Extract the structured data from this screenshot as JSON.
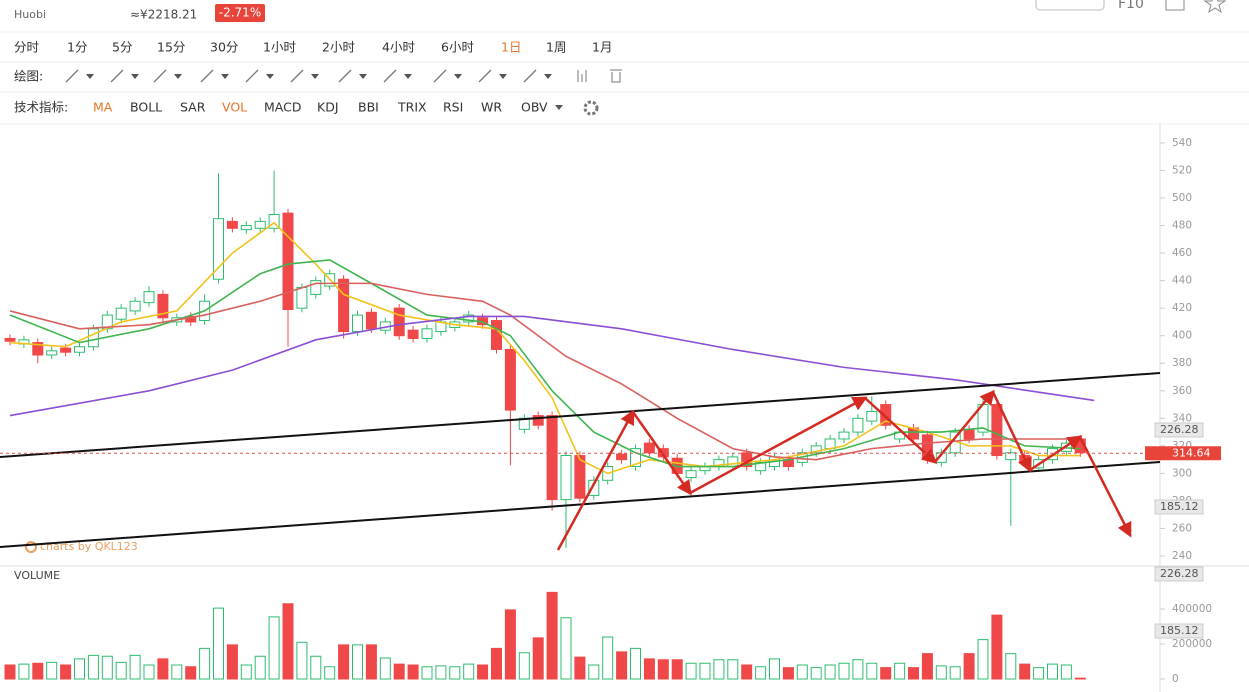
{
  "header": {
    "exchange": "Huobi",
    "price": "≈¥2218.21",
    "change": "-2.71%",
    "f10": "F10"
  },
  "toolbar": {
    "periods": [
      "分时",
      "1分",
      "5分",
      "15分",
      "30分",
      "1小时",
      "2小时",
      "4小时",
      "6小时",
      "1日",
      "1周",
      "1月"
    ],
    "drawing_label": "绘图:",
    "indicator_label": "技术指标:",
    "indicators": [
      "MA",
      "BOLL",
      "SAR",
      "VOL",
      "MACD",
      "KDJ",
      "BBI",
      "TRIX",
      "RSI",
      "WR",
      "OBV"
    ]
  },
  "chart_data": {
    "type": "candlestick",
    "categories": [
      null,
      null,
      null,
      null,
      null,
      null,
      null,
      null,
      null,
      null,
      null,
      null,
      null,
      null,
      null,
      null,
      null,
      null,
      null,
      null,
      null,
      null,
      null,
      null,
      null,
      null,
      null,
      null,
      null,
      null,
      null,
      null,
      null,
      null,
      null,
      null,
      null,
      null,
      null,
      null,
      null,
      null,
      null,
      null,
      null,
      null,
      null,
      null,
      null,
      null,
      null,
      null,
      null,
      null,
      null,
      null,
      null,
      null,
      null,
      null,
      null,
      null,
      null,
      null,
      null,
      null,
      null,
      null,
      null,
      null,
      null,
      null,
      null,
      null,
      null,
      null,
      null,
      null
    ],
    "open": [
      398,
      394,
      395,
      386,
      391,
      388,
      392,
      405,
      412,
      418,
      424,
      430,
      410,
      414,
      411,
      441,
      483,
      477,
      478,
      478,
      489,
      420,
      430,
      436,
      441,
      403,
      417,
      404,
      420,
      404,
      398,
      403,
      406,
      410,
      413,
      411,
      390,
      332,
      342,
      342,
      281,
      313,
      284,
      295,
      314,
      305,
      322,
      318,
      311,
      297,
      302,
      305,
      305,
      315,
      302,
      305,
      310,
      308,
      315,
      318,
      325,
      330,
      338,
      350,
      325,
      333,
      328,
      308,
      315,
      332,
      330,
      350,
      310,
      313,
      304,
      310,
      316,
      325
    ],
    "high": [
      401,
      400,
      398,
      392,
      394,
      395,
      408,
      418,
      423,
      428,
      436,
      433,
      416,
      417,
      430,
      518,
      486,
      483,
      486,
      520,
      492,
      438,
      443,
      448,
      444,
      418,
      420,
      413,
      423,
      407,
      408,
      413,
      413,
      418,
      416,
      414,
      393,
      343,
      345,
      345,
      316,
      316,
      298,
      308,
      317,
      321,
      325,
      321,
      314,
      305,
      308,
      313,
      315,
      318,
      311,
      315,
      313,
      318,
      323,
      328,
      333,
      343,
      356,
      353,
      333,
      336,
      331,
      318,
      333,
      335,
      355,
      353,
      318,
      316,
      313,
      321,
      325,
      328
    ],
    "low": [
      393,
      391,
      380,
      383,
      385,
      385,
      389,
      402,
      409,
      415,
      421,
      410,
      407,
      407,
      408,
      438,
      475,
      474,
      475,
      475,
      392,
      417,
      427,
      433,
      398,
      400,
      402,
      401,
      397,
      395,
      395,
      400,
      403,
      407,
      405,
      387,
      306,
      329,
      332,
      273,
      246,
      279,
      281,
      292,
      307,
      302,
      312,
      309,
      297,
      294,
      299,
      302,
      302,
      302,
      299,
      302,
      302,
      305,
      312,
      315,
      322,
      327,
      335,
      332,
      322,
      322,
      307,
      305,
      312,
      322,
      327,
      310,
      262,
      305,
      301,
      307,
      313,
      312
    ],
    "close": [
      396,
      397,
      386,
      389,
      388,
      392,
      405,
      415,
      420,
      425,
      432,
      413,
      413,
      410,
      425,
      485,
      478,
      480,
      483,
      488,
      419,
      435,
      440,
      445,
      403,
      415,
      405,
      410,
      400,
      398,
      405,
      410,
      410,
      415,
      408,
      390,
      346,
      340,
      335,
      281,
      313,
      282,
      295,
      305,
      310,
      318,
      315,
      312,
      300,
      302,
      305,
      310,
      312,
      305,
      308,
      312,
      305,
      315,
      320,
      325,
      330,
      340,
      345,
      335,
      330,
      325,
      310,
      315,
      330,
      325,
      350,
      313,
      315,
      308,
      310,
      318,
      322,
      315
    ],
    "volume": [
      80000,
      85000,
      90000,
      95000,
      80000,
      115000,
      135000,
      130000,
      95000,
      135000,
      80000,
      115000,
      80000,
      70000,
      175000,
      405000,
      195000,
      80000,
      130000,
      355000,
      430000,
      210000,
      130000,
      70000,
      195000,
      195000,
      195000,
      120000,
      85000,
      80000,
      70000,
      75000,
      70000,
      85000,
      80000,
      175000,
      395000,
      150000,
      235000,
      495000,
      350000,
      125000,
      80000,
      240000,
      155000,
      175000,
      115000,
      110000,
      110000,
      90000,
      90000,
      110000,
      110000,
      80000,
      70000,
      115000,
      65000,
      80000,
      65000,
      80000,
      90000,
      110000,
      90000,
      65000,
      90000,
      65000,
      145000,
      75000,
      70000,
      145000,
      225000,
      365000,
      145000,
      85000,
      65000,
      85000,
      80000,
      5000
    ],
    "up_color": "#2ebd6e",
    "down_color": "#f04848",
    "ma_lines": [
      {
        "color": "#f2c21b",
        "x": [
          0,
          4,
          8,
          12,
          16,
          19,
          22,
          24,
          28,
          32,
          35,
          37,
          39,
          41,
          43,
          46,
          50,
          55,
          60,
          63,
          66,
          69,
          72,
          74,
          77
        ],
        "values": [
          395,
          392,
          410,
          418,
          460,
          482,
          452,
          430,
          415,
          408,
          405,
          382,
          355,
          310,
          300,
          310,
          305,
          310,
          320,
          338,
          330,
          320,
          320,
          313,
          313
        ]
      },
      {
        "color": "#3fb54f",
        "x": [
          0,
          5,
          10,
          14,
          18,
          20,
          23,
          26,
          30,
          34,
          36,
          39,
          42,
          45,
          48,
          52,
          56,
          60,
          64,
          67,
          70,
          73,
          77
        ],
        "values": [
          415,
          395,
          405,
          418,
          445,
          452,
          455,
          438,
          415,
          410,
          400,
          360,
          330,
          315,
          305,
          305,
          310,
          318,
          330,
          330,
          333,
          320,
          318
        ]
      },
      {
        "color": "#d9605c",
        "x": [
          0,
          5,
          10,
          14,
          18,
          22,
          26,
          30,
          34,
          36,
          40,
          44,
          48,
          52,
          55,
          58,
          62,
          66,
          70,
          74,
          77
        ],
        "values": [
          418,
          405,
          408,
          415,
          425,
          438,
          438,
          430,
          425,
          415,
          385,
          365,
          340,
          318,
          312,
          310,
          318,
          322,
          325,
          325,
          325
        ]
      },
      {
        "color": "#8a4fd3",
        "x": [
          0,
          10,
          16,
          22,
          28,
          33,
          37,
          44,
          52,
          60,
          68,
          78
        ],
        "values": [
          342,
          360,
          375,
          397,
          408,
          414,
          414,
          405,
          390,
          377,
          368,
          353
        ]
      }
    ],
    "last_price": 314.64,
    "price_markers": [
      "226.28",
      "185.12"
    ],
    "ylim": [
      233.5,
      553
    ],
    "yticks": [
      240,
      260,
      280,
      300,
      320,
      340,
      360,
      380,
      400,
      420,
      440,
      460,
      480,
      500,
      520,
      540
    ],
    "volume_title": "VOLUME",
    "volume_markers": [
      "226.28",
      "185.12"
    ],
    "volume_ylim": [
      0,
      600000
    ],
    "volume_yticks": [
      0,
      200000,
      400000
    ],
    "watermark": "charts by QKL123"
  }
}
